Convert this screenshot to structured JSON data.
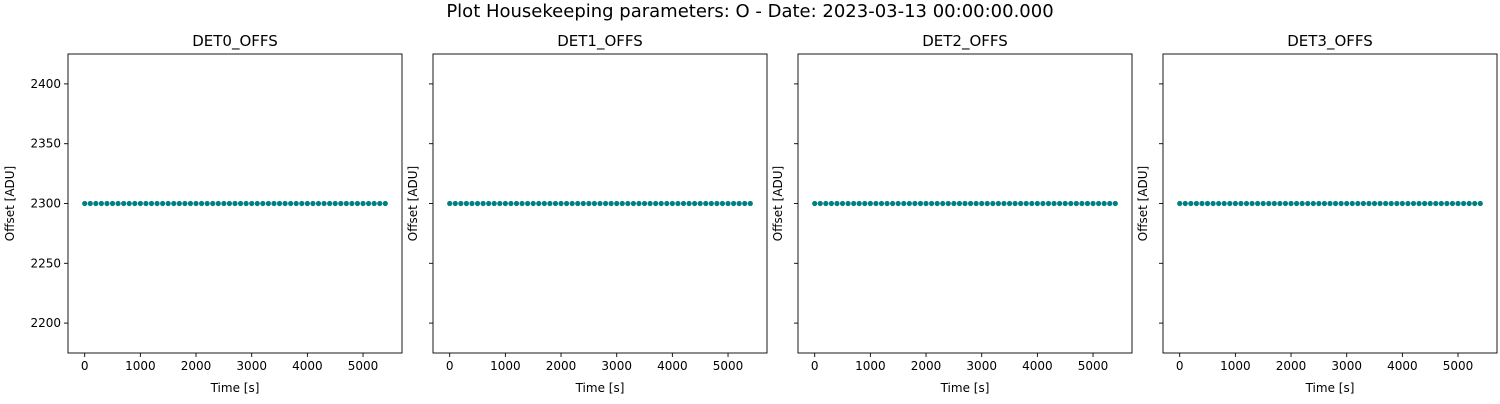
{
  "figure_title": "Plot Housekeeping parameters: O - Date: 2023-03-13 00:00:00.000",
  "colors": {
    "marker": "#008080",
    "axes": "#000000",
    "background": "#ffffff"
  },
  "chart_data": [
    {
      "type": "scatter",
      "title": "DET0_OFFS",
      "xlabel": "Time [s]",
      "ylabel": "Offset [ADU]",
      "xlim": [
        -300,
        5700
      ],
      "ylim": [
        2175,
        2425
      ],
      "xticks": [
        0,
        1000,
        2000,
        3000,
        4000,
        5000
      ],
      "yticks": [
        2200,
        2250,
        2300,
        2350,
        2400
      ],
      "x_range": [
        0,
        5400
      ],
      "sample_step": 100,
      "constant_value": 2300,
      "show_ytick_labels": true,
      "grid": false
    },
    {
      "type": "scatter",
      "title": "DET1_OFFS",
      "xlabel": "Time [s]",
      "ylabel": "Offset [ADU]",
      "xlim": [
        -300,
        5700
      ],
      "ylim": [
        2175,
        2425
      ],
      "xticks": [
        0,
        1000,
        2000,
        3000,
        4000,
        5000
      ],
      "yticks": [
        2200,
        2250,
        2300,
        2350,
        2400
      ],
      "x_range": [
        0,
        5400
      ],
      "sample_step": 100,
      "constant_value": 2300,
      "show_ytick_labels": false,
      "grid": false
    },
    {
      "type": "scatter",
      "title": "DET2_OFFS",
      "xlabel": "Time [s]",
      "ylabel": "Offset [ADU]",
      "xlim": [
        -300,
        5700
      ],
      "ylim": [
        2175,
        2425
      ],
      "xticks": [
        0,
        1000,
        2000,
        3000,
        4000,
        5000
      ],
      "yticks": [
        2200,
        2250,
        2300,
        2350,
        2400
      ],
      "x_range": [
        0,
        5400
      ],
      "sample_step": 100,
      "constant_value": 2300,
      "show_ytick_labels": false,
      "grid": false
    },
    {
      "type": "scatter",
      "title": "DET3_OFFS",
      "xlabel": "Time [s]",
      "ylabel": "Offset [ADU]",
      "xlim": [
        -300,
        5700
      ],
      "ylim": [
        2175,
        2425
      ],
      "xticks": [
        0,
        1000,
        2000,
        3000,
        4000,
        5000
      ],
      "yticks": [
        2200,
        2250,
        2300,
        2350,
        2400
      ],
      "x_range": [
        0,
        5400
      ],
      "sample_step": 100,
      "constant_value": 2300,
      "show_ytick_labels": false,
      "grid": false
    }
  ]
}
